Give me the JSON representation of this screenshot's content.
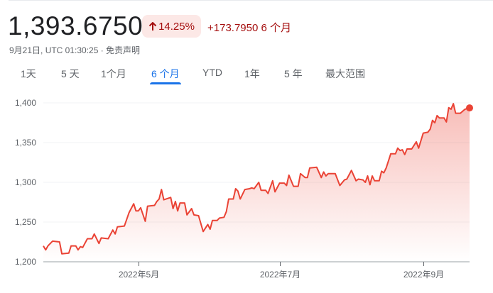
{
  "quote": {
    "price": "1,393.6750",
    "change_percent": "14.25%",
    "change_icon": "arrow-up-icon",
    "change_abs": "+173.7950 6 个月",
    "timestamp": "9月21日, UTC 01:30:25 · 免责声明"
  },
  "tabs": [
    {
      "label": "1天",
      "active": false
    },
    {
      "label": "5 天",
      "active": false
    },
    {
      "label": "1个月",
      "active": false
    },
    {
      "label": "6 个月",
      "active": true
    },
    {
      "label": "YTD",
      "active": false
    },
    {
      "label": "1年",
      "active": false
    },
    {
      "label": "5 年",
      "active": false
    },
    {
      "label": "最大范围",
      "active": false
    }
  ],
  "colors": {
    "line": "#ea4335",
    "badge_bg": "#fce8e6",
    "negative_text": "#a50e0e",
    "accent": "#1a73e8"
  },
  "chart_data": {
    "type": "area",
    "xlim": [
      "2022-03-21",
      "2022-09-21"
    ],
    "ylim": [
      1200,
      1400
    ],
    "yticks": [
      {
        "value": 1200,
        "label": "1,200"
      },
      {
        "value": 1250,
        "label": "1,250"
      },
      {
        "value": 1300,
        "label": "1,300"
      },
      {
        "value": 1350,
        "label": "1,350"
      },
      {
        "value": 1400,
        "label": "1,400"
      }
    ],
    "xticks": [
      {
        "date": "2022-05-01",
        "label": "2022年5月"
      },
      {
        "date": "2022-07-01",
        "label": "2022年7月"
      },
      {
        "date": "2022-09-01",
        "label": "2022年9月"
      }
    ],
    "grid": true,
    "points": [
      [
        "2022-03-21",
        1220
      ],
      [
        "2022-03-22",
        1215
      ],
      [
        "2022-03-23",
        1220
      ],
      [
        "2022-03-25",
        1226
      ],
      [
        "2022-03-28",
        1225
      ],
      [
        "2022-03-29",
        1210
      ],
      [
        "2022-04-01",
        1211
      ],
      [
        "2022-04-02",
        1220
      ],
      [
        "2022-04-04",
        1220
      ],
      [
        "2022-04-05",
        1215
      ],
      [
        "2022-04-06",
        1219
      ],
      [
        "2022-04-07",
        1218
      ],
      [
        "2022-04-09",
        1229
      ],
      [
        "2022-04-11",
        1229
      ],
      [
        "2022-04-12",
        1235
      ],
      [
        "2022-04-14",
        1223
      ],
      [
        "2022-04-15",
        1230
      ],
      [
        "2022-04-18",
        1229
      ],
      [
        "2022-04-20",
        1240
      ],
      [
        "2022-04-21",
        1235
      ],
      [
        "2022-04-22",
        1244
      ],
      [
        "2022-04-25",
        1245
      ],
      [
        "2022-04-27",
        1262
      ],
      [
        "2022-04-29",
        1273
      ],
      [
        "2022-04-30",
        1264
      ],
      [
        "2022-05-01",
        1264
      ],
      [
        "2022-05-02",
        1268
      ],
      [
        "2022-05-04",
        1251
      ],
      [
        "2022-05-05",
        1270
      ],
      [
        "2022-05-08",
        1271
      ],
      [
        "2022-05-09",
        1276
      ],
      [
        "2022-05-10",
        1279
      ],
      [
        "2022-05-11",
        1291
      ],
      [
        "2022-05-12",
        1278
      ],
      [
        "2022-05-15",
        1281
      ],
      [
        "2022-05-16",
        1267
      ],
      [
        "2022-05-17",
        1276
      ],
      [
        "2022-05-18",
        1264
      ],
      [
        "2022-05-19",
        1274
      ],
      [
        "2022-05-21",
        1274
      ],
      [
        "2022-05-22",
        1259
      ],
      [
        "2022-05-24",
        1267
      ],
      [
        "2022-05-25",
        1259
      ],
      [
        "2022-05-27",
        1258
      ],
      [
        "2022-05-29",
        1238
      ],
      [
        "2022-05-31",
        1247
      ],
      [
        "2022-06-01",
        1241
      ],
      [
        "2022-06-02",
        1252
      ],
      [
        "2022-06-04",
        1252
      ],
      [
        "2022-06-05",
        1255
      ],
      [
        "2022-06-07",
        1256
      ],
      [
        "2022-06-08",
        1263
      ],
      [
        "2022-06-09",
        1279
      ],
      [
        "2022-06-11",
        1279
      ],
      [
        "2022-06-12",
        1292
      ],
      [
        "2022-06-13",
        1289
      ],
      [
        "2022-06-14",
        1279
      ],
      [
        "2022-06-16",
        1291
      ],
      [
        "2022-06-18",
        1292
      ],
      [
        "2022-06-19",
        1293
      ],
      [
        "2022-06-20",
        1292
      ],
      [
        "2022-06-22",
        1300
      ],
      [
        "2022-06-23",
        1290
      ],
      [
        "2022-06-25",
        1290
      ],
      [
        "2022-06-26",
        1286
      ],
      [
        "2022-06-28",
        1302
      ],
      [
        "2022-06-29",
        1288
      ],
      [
        "2022-07-01",
        1299
      ],
      [
        "2022-07-03",
        1299
      ],
      [
        "2022-07-04",
        1296
      ],
      [
        "2022-07-05",
        1309
      ],
      [
        "2022-07-07",
        1295
      ],
      [
        "2022-07-09",
        1295
      ],
      [
        "2022-07-10",
        1311
      ],
      [
        "2022-07-12",
        1306
      ],
      [
        "2022-07-13",
        1306
      ],
      [
        "2022-07-14",
        1318
      ],
      [
        "2022-07-17",
        1319
      ],
      [
        "2022-07-19",
        1306
      ],
      [
        "2022-07-20",
        1313
      ],
      [
        "2022-07-21",
        1308
      ],
      [
        "2022-07-22",
        1311
      ],
      [
        "2022-07-25",
        1311
      ],
      [
        "2022-07-27",
        1296
      ],
      [
        "2022-07-29",
        1303
      ],
      [
        "2022-07-30",
        1304
      ],
      [
        "2022-08-01",
        1315
      ],
      [
        "2022-08-03",
        1302
      ],
      [
        "2022-08-04",
        1304
      ],
      [
        "2022-08-06",
        1303
      ],
      [
        "2022-08-07",
        1300
      ],
      [
        "2022-08-08",
        1308
      ],
      [
        "2022-08-09",
        1297
      ],
      [
        "2022-08-10",
        1308
      ],
      [
        "2022-08-11",
        1302
      ],
      [
        "2022-08-13",
        1302
      ],
      [
        "2022-08-14",
        1314
      ],
      [
        "2022-08-15",
        1312
      ],
      [
        "2022-08-16",
        1318
      ],
      [
        "2022-08-18",
        1336
      ],
      [
        "2022-08-20",
        1336
      ],
      [
        "2022-08-21",
        1343
      ],
      [
        "2022-08-22",
        1340
      ],
      [
        "2022-08-23",
        1341
      ],
      [
        "2022-08-24",
        1335
      ],
      [
        "2022-08-25",
        1342
      ],
      [
        "2022-08-27",
        1342
      ],
      [
        "2022-08-29",
        1351
      ],
      [
        "2022-08-30",
        1343
      ],
      [
        "2022-09-01",
        1362
      ],
      [
        "2022-09-03",
        1363
      ],
      [
        "2022-09-04",
        1367
      ],
      [
        "2022-09-05",
        1378
      ],
      [
        "2022-09-06",
        1375
      ],
      [
        "2022-09-07",
        1384
      ],
      [
        "2022-09-08",
        1381
      ],
      [
        "2022-09-10",
        1381
      ],
      [
        "2022-09-11",
        1376
      ],
      [
        "2022-09-12",
        1394
      ],
      [
        "2022-09-13",
        1392
      ],
      [
        "2022-09-14",
        1399
      ],
      [
        "2022-09-15",
        1387
      ],
      [
        "2022-09-17",
        1387
      ],
      [
        "2022-09-19",
        1392
      ],
      [
        "2022-09-21",
        1393.675
      ]
    ]
  }
}
